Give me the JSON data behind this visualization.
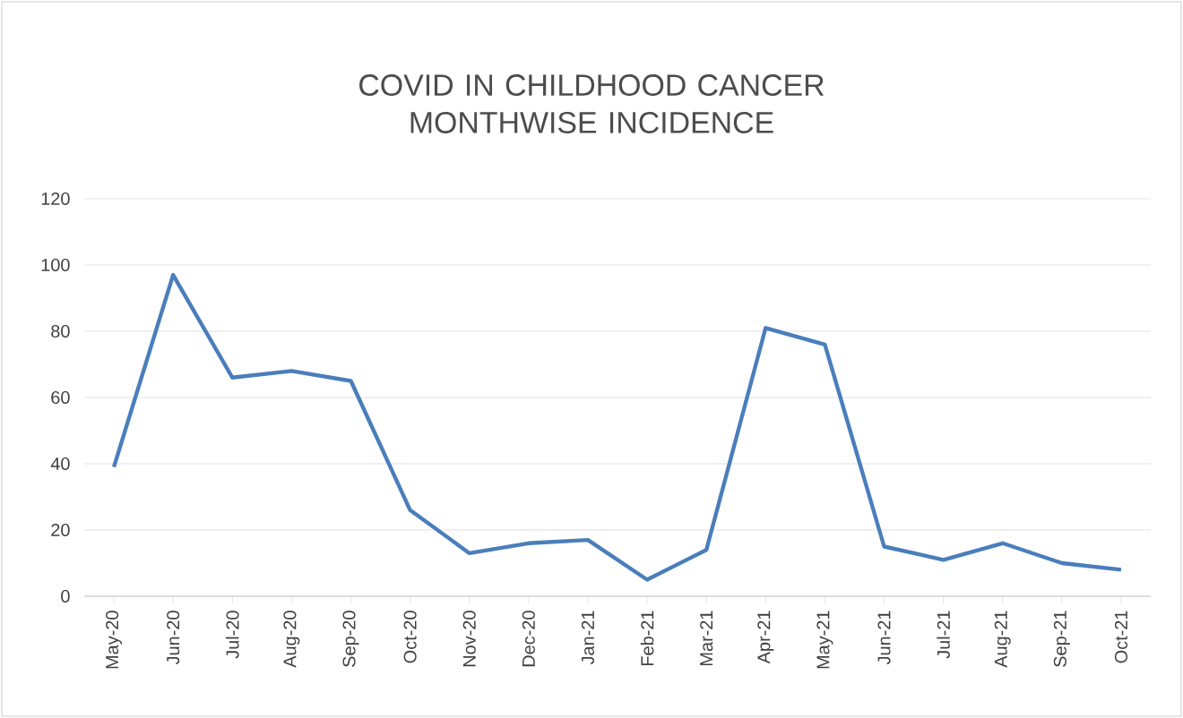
{
  "chart_data": {
    "type": "line",
    "title": "COVID IN CHILDHOOD CANCER MONTHWISE INCIDENCE",
    "categories": [
      "May-20",
      "Jun-20",
      "Jul-20",
      "Aug-20",
      "Sep-20",
      "Oct-20",
      "Nov-20",
      "Dec-20",
      "Jan-21",
      "Feb-21",
      "Mar-21",
      "Apr-21",
      "May-21",
      "Jun-21",
      "Jul-21",
      "Aug-21",
      "Sep-21",
      "Oct-21"
    ],
    "values": [
      39,
      97,
      66,
      68,
      65,
      26,
      13,
      16,
      17,
      5,
      14,
      81,
      76,
      15,
      11,
      16,
      10,
      8
    ],
    "color": "#4a7ebb",
    "ylim": [
      0,
      120
    ],
    "yticks": [
      0,
      20,
      40,
      60,
      80,
      100,
      120
    ],
    "grid": "y",
    "marker": "none",
    "line_style": "solid"
  }
}
